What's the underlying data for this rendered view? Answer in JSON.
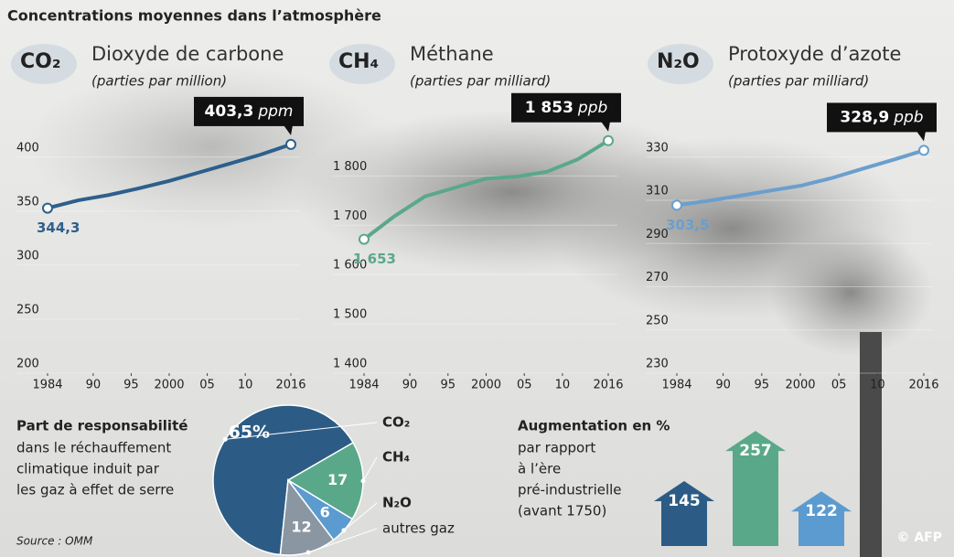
{
  "title": "Concentrations moyennes dans l’atmosphère",
  "source": "Source : OMM",
  "credit": "© AFP",
  "chart_data": [
    {
      "type": "line",
      "formula": "CO₂",
      "name": "Dioxyde de carbone",
      "subtitle": "(parties par million)",
      "color": "#2d5f8c",
      "x": [
        1984,
        1988,
        1992,
        1996,
        2000,
        2004,
        2008,
        2012,
        2016
      ],
      "values": [
        344.3,
        351.5,
        356.4,
        362.6,
        369.5,
        377.5,
        385.6,
        393.8,
        403.3
      ],
      "value_labels": [
        "344,3",
        null,
        null,
        null,
        null,
        null,
        null,
        null,
        "403,3"
      ],
      "value_unit": "ppm",
      "ylim": [
        200,
        410
      ],
      "yticks": [
        200,
        250,
        300,
        350,
        400
      ],
      "xlim": [
        1984,
        2016
      ],
      "xticks": [
        1984,
        {
          "value": 1990,
          "label": "90"
        },
        {
          "value": 1995,
          "label": "95"
        },
        2000,
        {
          "value": 2005,
          "label": "05"
        },
        {
          "value": 2010,
          "label": "10"
        },
        2016
      ],
      "grid": true
    },
    {
      "type": "line",
      "formula": "CH₄",
      "name": "Méthane",
      "subtitle": "(parties par milliard)",
      "color": "#5aa88a",
      "x": [
        1984,
        1988,
        1992,
        1996,
        2000,
        2004,
        2008,
        2012,
        2016
      ],
      "values": [
        1653,
        1700,
        1740,
        1758,
        1776,
        1780,
        1790,
        1815,
        1853
      ],
      "value_labels": [
        "1 653",
        null,
        null,
        null,
        null,
        null,
        null,
        null,
        "1 853"
      ],
      "value_unit": "ppb",
      "ylim": [
        1400,
        1860
      ],
      "yticks": [
        {
          "value": 1400,
          "label": "1 400"
        },
        {
          "value": 1500,
          "label": "1 500"
        },
        {
          "value": 1600,
          "label": "1 600"
        },
        {
          "value": 1700,
          "label": "1 700"
        },
        {
          "value": 1800,
          "label": "1 800"
        }
      ],
      "xlim": [
        1984,
        2016
      ],
      "xticks": [
        1984,
        {
          "value": 1990,
          "label": "90"
        },
        {
          "value": 1995,
          "label": "95"
        },
        2000,
        {
          "value": 2005,
          "label": "05"
        },
        {
          "value": 2010,
          "label": "10"
        },
        2016
      ],
      "grid": true
    },
    {
      "type": "line",
      "formula": "N₂O",
      "name": "Protoxyde d’azote",
      "subtitle": "(parties par milliard)",
      "color": "#6a9fcc",
      "x": [
        1984,
        1988,
        1992,
        1996,
        2000,
        2004,
        2008,
        2012,
        2016
      ],
      "values": [
        303.5,
        305.5,
        307.8,
        310.2,
        312.5,
        316.0,
        320.3,
        324.5,
        328.9
      ],
      "value_labels": [
        "303,5",
        null,
        null,
        null,
        null,
        null,
        null,
        null,
        "328,9"
      ],
      "value_unit": "ppb",
      "ylim": [
        230,
        335
      ],
      "yticks": [
        230,
        250,
        270,
        290,
        310,
        330
      ],
      "xlim": [
        1984,
        2016
      ],
      "xticks": [
        1984,
        {
          "value": 1990,
          "label": "90"
        },
        {
          "value": 1995,
          "label": "95"
        },
        2000,
        {
          "value": 2005,
          "label": "05"
        },
        {
          "value": 2010,
          "label": "10"
        },
        2016
      ],
      "grid": true
    },
    {
      "type": "pie",
      "title": "Part de responsabilité",
      "subtitle": [
        "dans le réchauffement",
        "climatique induit par",
        "les gaz à effet de serre"
      ],
      "categories": [
        "CO₂",
        "CH₄",
        "N₂O",
        "autres gaz"
      ],
      "values": [
        65,
        17,
        6,
        12
      ],
      "value_labels": [
        "65%",
        "17",
        "6",
        "12"
      ],
      "colors": [
        "#2c5c85",
        "#5aa88a",
        "#5b9bd0",
        "#8a97a3"
      ]
    },
    {
      "type": "arrows",
      "title": "Augmentation en %",
      "subtitle": [
        "par rapport",
        "à l’ère",
        "pré-industrielle",
        "(avant 1750)"
      ],
      "categories": [
        null,
        null,
        null
      ],
      "values": [
        145,
        257,
        122
      ],
      "colors": [
        "#2c5c85",
        "#5aa88a",
        "#5b9bd0"
      ]
    }
  ]
}
